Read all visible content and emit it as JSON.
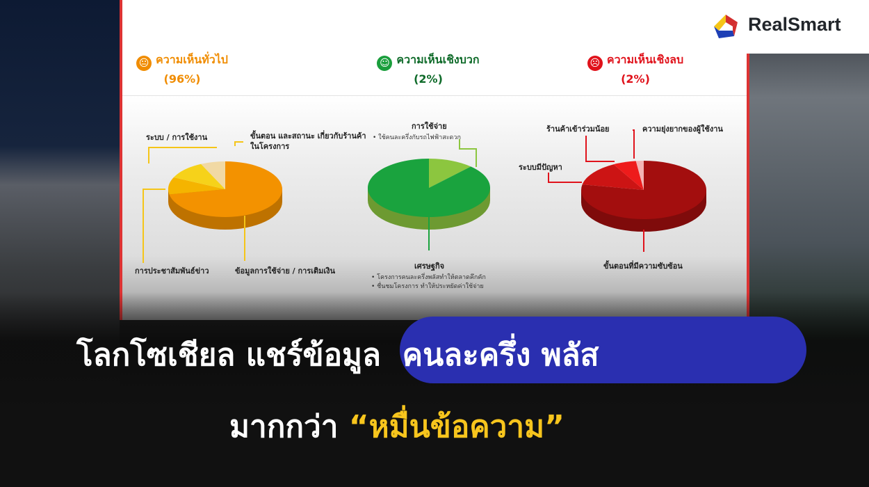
{
  "brand": {
    "name": "RealSmart",
    "colors": [
      "#f5c518",
      "#d32f2f",
      "#1e3fb5"
    ]
  },
  "headline": {
    "line1_white": "โลกโซเชียล แชร์ข้อมูล",
    "line1_highlight": "คนละครึ่ง พลัส",
    "line2_white": "มากกว่า",
    "line2_highlight": "“หมื่นข้อความ”",
    "highlight_bg": "#2a2fb0",
    "quote_color": "#f7c51d"
  },
  "chart_data": [
    {
      "type": "pie",
      "title": "ความเห็นทั่วไป",
      "subtitle": "(96%)",
      "icon": "neutral-face-icon",
      "color": "#f08c00",
      "slices": [
        {
          "label": "ข้อมูลการใช้จ่าย / การเติมเงิน",
          "value": 72,
          "color": "#f39200"
        },
        {
          "label": "การประชาสัมพันธ์ข่าว",
          "value": 10,
          "color": "#f5b400"
        },
        {
          "label": "ระบบ / การใช้งาน",
          "value": 11,
          "color": "#f6d21a"
        },
        {
          "label": "ขั้นตอน และสถานะ เกี่ยวกับร้านค้าในโครงการ",
          "value": 7,
          "color": "#f1d9a4"
        }
      ]
    },
    {
      "type": "pie",
      "title": "ความเห็นเชิงบวก",
      "subtitle": "(2%)",
      "icon": "smiling-face-icon",
      "color": "#1a9e3c",
      "slices": [
        {
          "label": "การใช้จ่าย",
          "bullets": [
            "ใช้คนละครึ่งกับรถไฟฟ้าสะดวก"
          ],
          "value": 12,
          "color": "#8cc63f"
        },
        {
          "label": "เศรษฐกิจ",
          "bullets": [
            "โครงการคนละครึ่งพลัสทำให้ตลาดคึกคัก",
            "ชื่นชมโครงการ ทำให้ประหยัดค่าใช้จ่าย"
          ],
          "value": 88,
          "color": "#1aa33e"
        }
      ]
    },
    {
      "type": "pie",
      "title": "ความเห็นเชิงลบ",
      "subtitle": "(2%)",
      "icon": "frowning-face-icon",
      "color": "#e0121b",
      "slices": [
        {
          "label": "ขั้นตอนที่มีความซับซ้อน",
          "value": 78,
          "color": "#a30e0e"
        },
        {
          "label": "ระบบมีปัญหา",
          "value": 14,
          "color": "#cc1414"
        },
        {
          "label": "ร้านค้าเข้าร่วมน้อย",
          "value": 6,
          "color": "#ee1b1b"
        },
        {
          "label": "ความยุ่งยากของผู้ใช้งาน",
          "value": 2,
          "color": "#f3b3b3"
        }
      ]
    }
  ]
}
